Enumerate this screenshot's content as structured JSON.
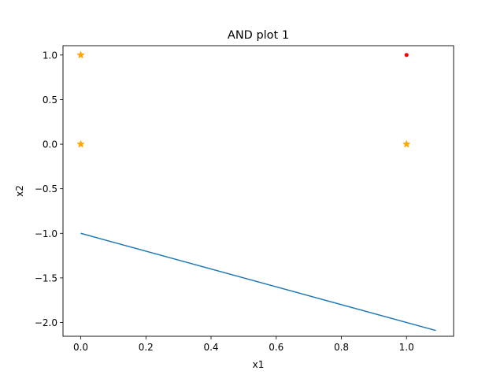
{
  "chart_data": {
    "type": "scatter",
    "title": "AND plot 1",
    "xlabel": "x1",
    "ylabel": "x2",
    "xlim": [
      -0.0545,
      1.1445
    ],
    "ylim": [
      -2.1545,
      1.1045
    ],
    "xticks": [
      0.0,
      0.2,
      0.4,
      0.6,
      0.8,
      1.0
    ],
    "xtick_labels": [
      "0.0",
      "0.2",
      "0.4",
      "0.6",
      "0.8",
      "1.0"
    ],
    "yticks": [
      1.0,
      0.5,
      0.0,
      -0.5,
      -1.0,
      -1.5,
      -2.0
    ],
    "ytick_labels": [
      "1.0",
      "0.5",
      "0.0",
      "−0.5",
      "−1.0",
      "−1.5",
      "−2.0"
    ],
    "grid": false,
    "series": [
      {
        "marker": "star",
        "color": "#ffa500",
        "points": [
          {
            "x": 0,
            "y": 1
          },
          {
            "x": 0,
            "y": 0
          },
          {
            "x": 1,
            "y": 0
          }
        ]
      },
      {
        "marker": "dot",
        "color": "#ff0000",
        "points": [
          {
            "x": 1,
            "y": 1
          }
        ]
      },
      {
        "type": "line",
        "color": "#1f77b4",
        "points": [
          {
            "x": 0.0,
            "y": -1.0
          },
          {
            "x": 1.09,
            "y": -2.09
          }
        ]
      }
    ]
  }
}
